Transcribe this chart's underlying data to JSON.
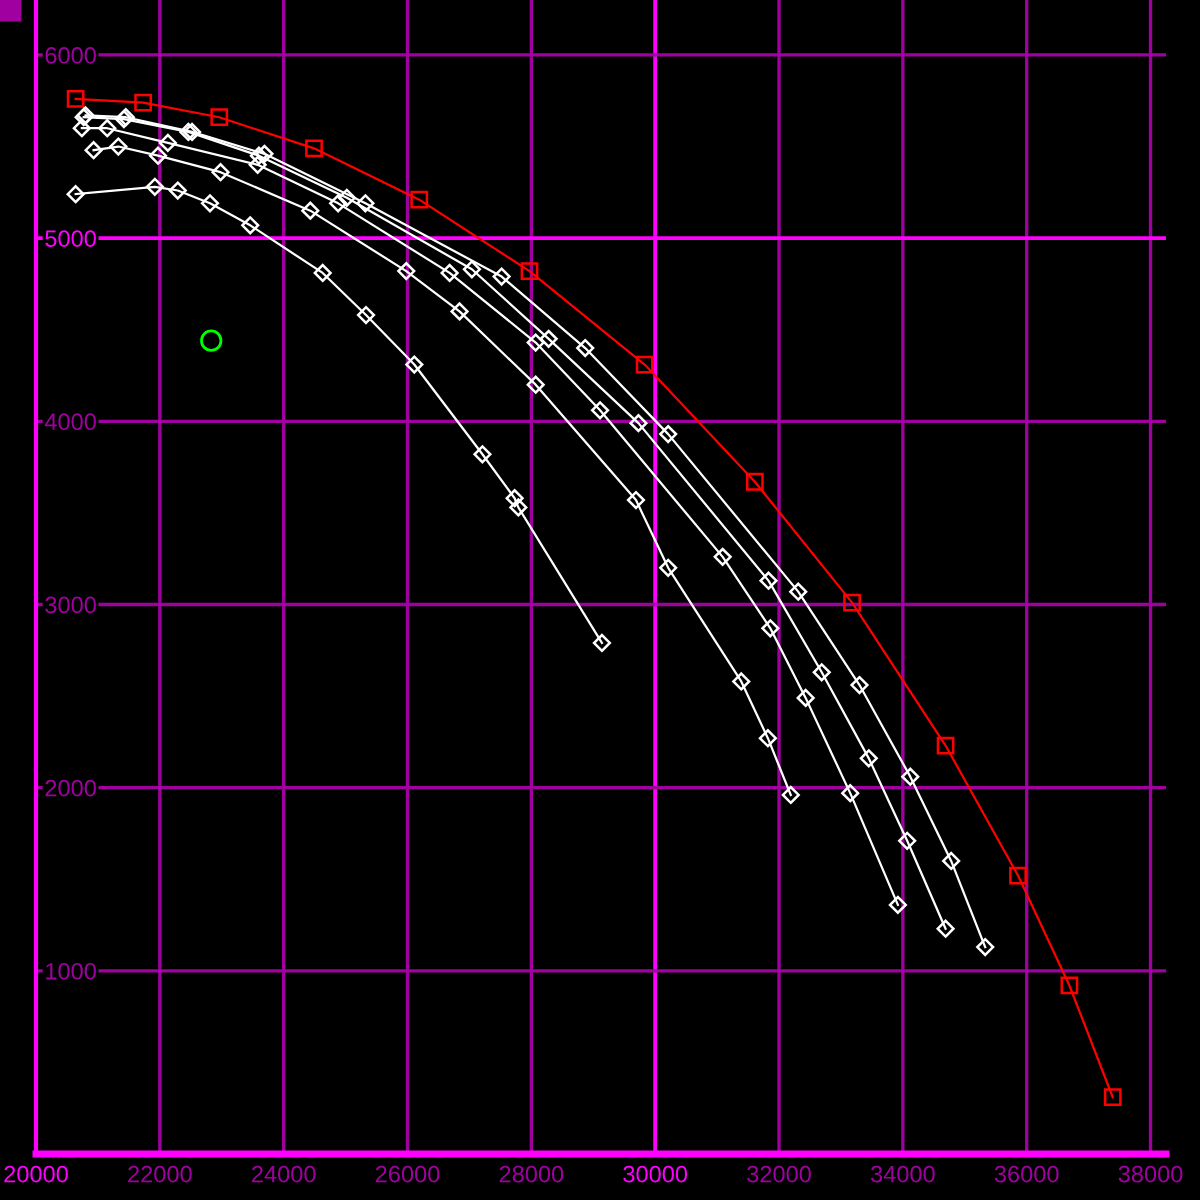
{
  "chart_data": {
    "type": "line",
    "xlim": [
      20000,
      38250
    ],
    "ylim": [
      0,
      6300
    ],
    "xticks": [
      20000,
      22000,
      24000,
      26000,
      28000,
      30000,
      32000,
      34000,
      36000,
      38000
    ],
    "yticks": [
      1000,
      2000,
      3000,
      4000,
      5000,
      6000
    ],
    "grid": true,
    "line_style": "solid",
    "series": [
      {
        "color": "#ff0000",
        "marker": "square",
        "x": [
          20640,
          21730,
          22960,
          24490,
          26190,
          27970,
          29830,
          31610,
          33180,
          34690,
          35860,
          36690,
          37390
        ],
        "values": [
          5760,
          5740,
          5660,
          5490,
          5210,
          4820,
          4310,
          3670,
          3010,
          2230,
          1520,
          920,
          310
        ]
      },
      {
        "color": "#ffffff",
        "marker": "diamond",
        "x": [
          20640,
          21920,
          22290,
          22810,
          23460,
          24630,
          25330,
          26110,
          27210,
          27730,
          27790,
          29140
        ],
        "values": [
          5240,
          5280,
          5260,
          5190,
          5070,
          4810,
          4580,
          4310,
          3820,
          3580,
          3530,
          2790
        ]
      },
      {
        "color": "#ffffff",
        "marker": "diamond",
        "x": [
          20930,
          21330,
          21970,
          22980,
          24430,
          25980,
          26840,
          28070,
          29690,
          30210,
          31390,
          31820,
          32190
        ],
        "values": [
          5480,
          5500,
          5450,
          5360,
          5150,
          4820,
          4600,
          4200,
          3570,
          3200,
          2580,
          2270,
          1960
        ]
      },
      {
        "color": "#ffffff",
        "marker": "diamond",
        "x": [
          20740,
          21150,
          22130,
          23580,
          24880,
          26680,
          28070,
          29110,
          31090,
          31860,
          32430,
          33150,
          33920
        ],
        "values": [
          5600,
          5600,
          5520,
          5400,
          5190,
          4810,
          4430,
          4060,
          3260,
          2870,
          2490,
          1970,
          1360
        ]
      },
      {
        "color": "#ffffff",
        "marker": "diamond",
        "x": [
          20770,
          21420,
          22460,
          23600,
          25020,
          27040,
          28280,
          29730,
          31830,
          32690,
          33450,
          34070,
          34690
        ],
        "values": [
          5660,
          5650,
          5580,
          5450,
          5220,
          4830,
          4450,
          3990,
          3130,
          2630,
          2160,
          1710,
          1230
        ]
      },
      {
        "color": "#ffffff",
        "marker": "diamond",
        "x": [
          20800,
          21450,
          22520,
          23690,
          25320,
          27520,
          28870,
          30210,
          32310,
          33300,
          34120,
          34780,
          35330
        ],
        "values": [
          5670,
          5660,
          5580,
          5460,
          5190,
          4790,
          4400,
          3930,
          3070,
          2560,
          2060,
          1600,
          1130
        ]
      },
      {
        "type": "scatter",
        "color": "#00ff00",
        "marker": "circle",
        "x": [
          22830
        ],
        "values": [
          4440
        ]
      }
    ]
  }
}
